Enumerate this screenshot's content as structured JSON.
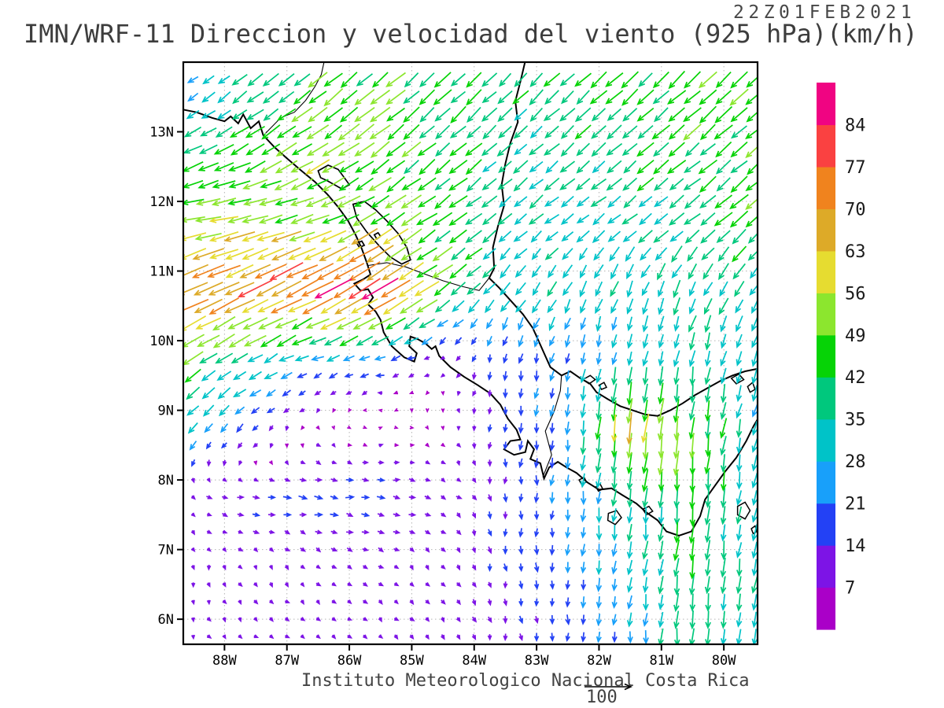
{
  "header": {
    "timestamp": "22Z01FEB2021",
    "title": "IMN/WRF-11 Direccion y velocidad del viento (925 hPa)(km/h)"
  },
  "footer": {
    "credit": "Instituto Meteorologico Nacional Costa Rica",
    "reference_label": "100"
  },
  "chart_data": {
    "type": "vector_field",
    "field": "wind direction and speed",
    "level": "925 hPa",
    "units": "km/h",
    "model_run": "22Z01FEB2021",
    "axes": {
      "lon_range": [
        -88.66,
        -79.46
      ],
      "lat_range": [
        5.64,
        14.0
      ],
      "lon_tick_values": [
        -88,
        -87,
        -86,
        -85,
        -84,
        -83,
        -82,
        -81,
        -80
      ],
      "lon_tick_labels": [
        "88W",
        "87W",
        "86W",
        "85W",
        "84W",
        "83W",
        "82W",
        "81W",
        "80W"
      ],
      "lat_tick_values": [
        6,
        7,
        8,
        9,
        10,
        11,
        12,
        13
      ],
      "lat_tick_labels": [
        "6N",
        "7N",
        "8N",
        "9N",
        "10N",
        "11N",
        "12N",
        "13N"
      ],
      "grid": "dotted 1-degree"
    },
    "colorbar": {
      "units": "km/h",
      "levels": [
        7,
        14,
        21,
        28,
        35,
        42,
        49,
        56,
        63,
        70,
        77,
        84
      ],
      "labels": [
        "7",
        "14",
        "21",
        "28",
        "35",
        "42",
        "49",
        "56",
        "63",
        "70",
        "77",
        "84"
      ],
      "colors": [
        "#aa00c8",
        "#7d14e6",
        "#2341f5",
        "#18a0fa",
        "#00c3c8",
        "#00c87d",
        "#06d306",
        "#8ce62e",
        "#e6dc30",
        "#ddaa28",
        "#f0831e",
        "#fa4141",
        "#f00482"
      ]
    },
    "reference_arrow": {
      "value_kmh": 100,
      "label": "100"
    },
    "vectors": {
      "note": "u,v in km/h sampled on 1-degree grid; plot renders 0.25-degree interpolated arrows",
      "arrow_spacing_deg": 0.25,
      "lons": [
        -88.5,
        -87.5,
        -86.5,
        -85.5,
        -84.5,
        -83.5,
        -82.5,
        -81.5,
        -80.5,
        -79.5
      ],
      "lats": [
        5.75,
        6.75,
        7.75,
        8.75,
        9.75,
        10.75,
        11.75,
        12.75,
        13.75
      ],
      "u": [
        [
          4,
          6,
          7,
          6,
          5,
          2,
          0,
          -2,
          -3,
          -4
        ],
        [
          2,
          5,
          7,
          8,
          6,
          2,
          -2,
          -4,
          -5,
          -5
        ],
        [
          8,
          15,
          17,
          16,
          10,
          0,
          -2,
          -3,
          -4,
          -5
        ],
        [
          -20,
          -12,
          2,
          4,
          3,
          -2,
          -3,
          -8,
          -5,
          -8
        ],
        [
          -38,
          -30,
          -25,
          -22,
          -6,
          -4,
          -5,
          -6,
          -6,
          -10
        ],
        [
          -65,
          -68,
          -70,
          -72,
          -38,
          -20,
          -15,
          -12,
          -15,
          -20
        ],
        [
          -52,
          -55,
          -50,
          -42,
          -35,
          -28,
          -25,
          -28,
          -32,
          -35
        ],
        [
          -35,
          -38,
          -45,
          -38,
          -32,
          -28,
          -28,
          -30,
          -33,
          -35
        ],
        [
          -18,
          -28,
          -35,
          -35,
          -32,
          -28,
          -28,
          -32,
          -35,
          -35
        ]
      ],
      "v": [
        [
          -7,
          -6,
          -5,
          -6,
          -8,
          -12,
          -18,
          -25,
          -38,
          -30
        ],
        [
          -9,
          -7,
          -6,
          -6,
          -8,
          -14,
          -20,
          -30,
          -42,
          -32
        ],
        [
          -4,
          -3,
          -2,
          -2,
          -4,
          -15,
          -22,
          -35,
          -45,
          -30
        ],
        [
          -20,
          -10,
          -6,
          2,
          -5,
          -16,
          -25,
          -62,
          -48,
          -28
        ],
        [
          -25,
          -18,
          -10,
          -6,
          -6,
          -18,
          -22,
          -28,
          -32,
          -30
        ],
        [
          -30,
          -32,
          -35,
          -45,
          -28,
          -25,
          -28,
          -30,
          -32,
          -30
        ],
        [
          -10,
          -12,
          -20,
          -25,
          -25,
          -22,
          -20,
          -22,
          -25,
          -28
        ],
        [
          -18,
          -22,
          -28,
          -30,
          -28,
          -25,
          -25,
          -26,
          -28,
          -30
        ],
        [
          -14,
          -25,
          -30,
          -30,
          -30,
          -26,
          -28,
          -30,
          -32,
          -32
        ]
      ]
    }
  },
  "map": {
    "coastlines": [
      [
        [
          -88.67,
          13.32
        ],
        [
          -88.45,
          13.28
        ],
        [
          -88.2,
          13.2
        ],
        [
          -88.0,
          13.15
        ],
        [
          -87.9,
          13.22
        ],
        [
          -87.78,
          13.12
        ],
        [
          -87.7,
          13.25
        ],
        [
          -87.58,
          13.05
        ],
        [
          -87.45,
          13.15
        ],
        [
          -87.38,
          12.95
        ],
        [
          -87.2,
          12.78
        ],
        [
          -87.0,
          12.62
        ],
        [
          -86.78,
          12.45
        ],
        [
          -86.55,
          12.28
        ],
        [
          -86.35,
          12.1
        ],
        [
          -86.18,
          11.92
        ],
        [
          -86.02,
          11.72
        ],
        [
          -85.9,
          11.52
        ],
        [
          -85.8,
          11.32
        ],
        [
          -85.72,
          11.12
        ],
        [
          -85.66,
          10.95
        ],
        [
          -85.78,
          10.88
        ],
        [
          -85.92,
          10.82
        ],
        [
          -85.82,
          10.72
        ],
        [
          -85.7,
          10.74
        ],
        [
          -85.62,
          10.62
        ],
        [
          -85.7,
          10.52
        ],
        [
          -85.58,
          10.42
        ],
        [
          -85.5,
          10.3
        ],
        [
          -85.45,
          10.12
        ],
        [
          -85.32,
          9.92
        ],
        [
          -85.12,
          9.76
        ],
        [
          -84.96,
          9.7
        ],
        [
          -84.92,
          9.82
        ],
        [
          -85.04,
          9.92
        ],
        [
          -85.02,
          10.06
        ],
        [
          -84.9,
          10.02
        ],
        [
          -84.78,
          9.96
        ],
        [
          -84.68,
          9.88
        ],
        [
          -84.62,
          9.92
        ],
        [
          -84.56,
          9.78
        ],
        [
          -84.38,
          9.62
        ],
        [
          -84.16,
          9.48
        ],
        [
          -83.94,
          9.36
        ],
        [
          -83.74,
          9.24
        ],
        [
          -83.58,
          9.08
        ],
        [
          -83.46,
          8.88
        ],
        [
          -83.32,
          8.72
        ],
        [
          -83.26,
          8.58
        ],
        [
          -83.42,
          8.56
        ],
        [
          -83.52,
          8.44
        ],
        [
          -83.36,
          8.36
        ],
        [
          -83.18,
          8.4
        ],
        [
          -83.14,
          8.56
        ],
        [
          -83.04,
          8.44
        ],
        [
          -83.1,
          8.3
        ],
        [
          -82.94,
          8.24
        ],
        [
          -82.88,
          8.02
        ],
        [
          -82.8,
          8.18
        ],
        [
          -82.66,
          8.26
        ],
        [
          -82.52,
          8.18
        ],
        [
          -82.36,
          8.1
        ],
        [
          -82.18,
          7.96
        ],
        [
          -82.0,
          7.86
        ],
        [
          -81.8,
          7.88
        ],
        [
          -81.62,
          7.78
        ],
        [
          -81.4,
          7.66
        ],
        [
          -81.22,
          7.52
        ],
        [
          -81.06,
          7.42
        ],
        [
          -80.92,
          7.26
        ],
        [
          -80.72,
          7.2
        ],
        [
          -80.52,
          7.26
        ],
        [
          -80.38,
          7.48
        ],
        [
          -80.3,
          7.72
        ],
        [
          -80.14,
          7.92
        ],
        [
          -79.98,
          8.12
        ],
        [
          -79.8,
          8.32
        ],
        [
          -79.64,
          8.56
        ],
        [
          -79.52,
          8.78
        ],
        [
          -79.44,
          8.9
        ]
      ],
      [
        [
          -83.18,
          14.02
        ],
        [
          -83.26,
          13.72
        ],
        [
          -83.34,
          13.44
        ],
        [
          -83.3,
          13.14
        ],
        [
          -83.42,
          12.84
        ],
        [
          -83.5,
          12.54
        ],
        [
          -83.56,
          12.24
        ],
        [
          -83.52,
          11.94
        ],
        [
          -83.62,
          11.64
        ],
        [
          -83.7,
          11.34
        ],
        [
          -83.68,
          11.04
        ],
        [
          -83.76,
          10.9
        ],
        [
          -83.6,
          10.76
        ],
        [
          -83.42,
          10.58
        ],
        [
          -83.22,
          10.38
        ],
        [
          -83.06,
          10.18
        ],
        [
          -82.96,
          9.98
        ],
        [
          -82.86,
          9.78
        ],
        [
          -82.78,
          9.62
        ],
        [
          -82.6,
          9.5
        ],
        [
          -82.46,
          9.56
        ],
        [
          -82.3,
          9.46
        ],
        [
          -82.14,
          9.38
        ],
        [
          -82.04,
          9.26
        ],
        [
          -81.86,
          9.16
        ],
        [
          -81.66,
          9.06
        ],
        [
          -81.46,
          9.0
        ],
        [
          -81.26,
          8.94
        ],
        [
          -81.06,
          8.92
        ],
        [
          -80.86,
          9.0
        ],
        [
          -80.66,
          9.1
        ],
        [
          -80.46,
          9.22
        ],
        [
          -80.26,
          9.32
        ],
        [
          -80.06,
          9.42
        ],
        [
          -79.86,
          9.5
        ],
        [
          -79.66,
          9.56
        ],
        [
          -79.44,
          9.6
        ]
      ]
    ],
    "borders": [
      [
        [
          -87.34,
          12.98
        ],
        [
          -87.1,
          13.2
        ],
        [
          -86.88,
          13.28
        ],
        [
          -86.7,
          13.45
        ],
        [
          -86.55,
          13.65
        ],
        [
          -86.45,
          13.82
        ],
        [
          -86.4,
          14.02
        ]
      ],
      [
        [
          -85.7,
          11.08
        ],
        [
          -85.4,
          11.12
        ],
        [
          -85.1,
          11.06
        ],
        [
          -84.8,
          10.96
        ],
        [
          -84.5,
          10.86
        ],
        [
          -84.2,
          10.78
        ],
        [
          -83.92,
          10.72
        ],
        [
          -83.76,
          10.9
        ]
      ],
      [
        [
          -82.9,
          8.04
        ],
        [
          -82.76,
          8.36
        ],
        [
          -82.86,
          8.7
        ],
        [
          -82.72,
          8.98
        ],
        [
          -82.62,
          9.28
        ],
        [
          -82.6,
          9.5
        ]
      ]
    ],
    "lakes": [
      [
        [
          -86.5,
          12.44
        ],
        [
          -86.34,
          12.52
        ],
        [
          -86.18,
          12.46
        ],
        [
          -86.08,
          12.34
        ],
        [
          -86.0,
          12.24
        ],
        [
          -86.12,
          12.18
        ],
        [
          -86.24,
          12.24
        ],
        [
          -86.36,
          12.3
        ],
        [
          -86.46,
          12.34
        ]
      ],
      [
        [
          -85.94,
          11.96
        ],
        [
          -85.76,
          12.0
        ],
        [
          -85.58,
          11.88
        ],
        [
          -85.4,
          11.72
        ],
        [
          -85.22,
          11.54
        ],
        [
          -85.08,
          11.34
        ],
        [
          -85.02,
          11.16
        ],
        [
          -85.16,
          11.1
        ],
        [
          -85.34,
          11.2
        ],
        [
          -85.52,
          11.36
        ],
        [
          -85.72,
          11.56
        ],
        [
          -85.88,
          11.76
        ]
      ],
      [
        [
          -85.6,
          11.52
        ],
        [
          -85.54,
          11.55
        ],
        [
          -85.5,
          11.5
        ],
        [
          -85.56,
          11.46
        ]
      ],
      [
        [
          -85.88,
          11.4
        ],
        [
          -85.8,
          11.43
        ],
        [
          -85.76,
          11.37
        ],
        [
          -85.84,
          11.34
        ]
      ]
    ],
    "islands": [
      [
        [
          -81.85,
          7.52
        ],
        [
          -81.72,
          7.56
        ],
        [
          -81.64,
          7.46
        ],
        [
          -81.74,
          7.36
        ],
        [
          -81.86,
          7.42
        ]
      ],
      [
        [
          -81.3,
          7.58
        ],
        [
          -81.2,
          7.62
        ],
        [
          -81.14,
          7.55
        ],
        [
          -81.24,
          7.5
        ]
      ],
      [
        [
          -82.32,
          8.0
        ],
        [
          -82.24,
          8.04
        ],
        [
          -82.2,
          7.97
        ],
        [
          -82.28,
          7.94
        ]
      ],
      [
        [
          -82.05,
          7.9
        ],
        [
          -81.98,
          7.94
        ],
        [
          -81.94,
          7.87
        ],
        [
          -82.01,
          7.84
        ]
      ],
      [
        [
          -82.26,
          9.44
        ],
        [
          -82.14,
          9.5
        ],
        [
          -82.06,
          9.44
        ],
        [
          -82.16,
          9.38
        ]
      ],
      [
        [
          -82.0,
          9.36
        ],
        [
          -81.92,
          9.4
        ],
        [
          -81.88,
          9.33
        ],
        [
          -81.96,
          9.3
        ]
      ],
      [
        [
          -79.88,
          9.46
        ],
        [
          -79.76,
          9.52
        ],
        [
          -79.68,
          9.44
        ],
        [
          -79.8,
          9.38
        ]
      ],
      [
        [
          -79.62,
          9.34
        ],
        [
          -79.54,
          9.4
        ],
        [
          -79.5,
          9.3
        ],
        [
          -79.58,
          9.26
        ]
      ],
      [
        [
          -79.78,
          7.62
        ],
        [
          -79.66,
          7.68
        ],
        [
          -79.58,
          7.56
        ],
        [
          -79.66,
          7.44
        ],
        [
          -79.78,
          7.5
        ]
      ],
      [
        [
          -79.56,
          7.3
        ],
        [
          -79.5,
          7.34
        ],
        [
          -79.47,
          7.26
        ],
        [
          -79.53,
          7.23
        ]
      ]
    ]
  }
}
